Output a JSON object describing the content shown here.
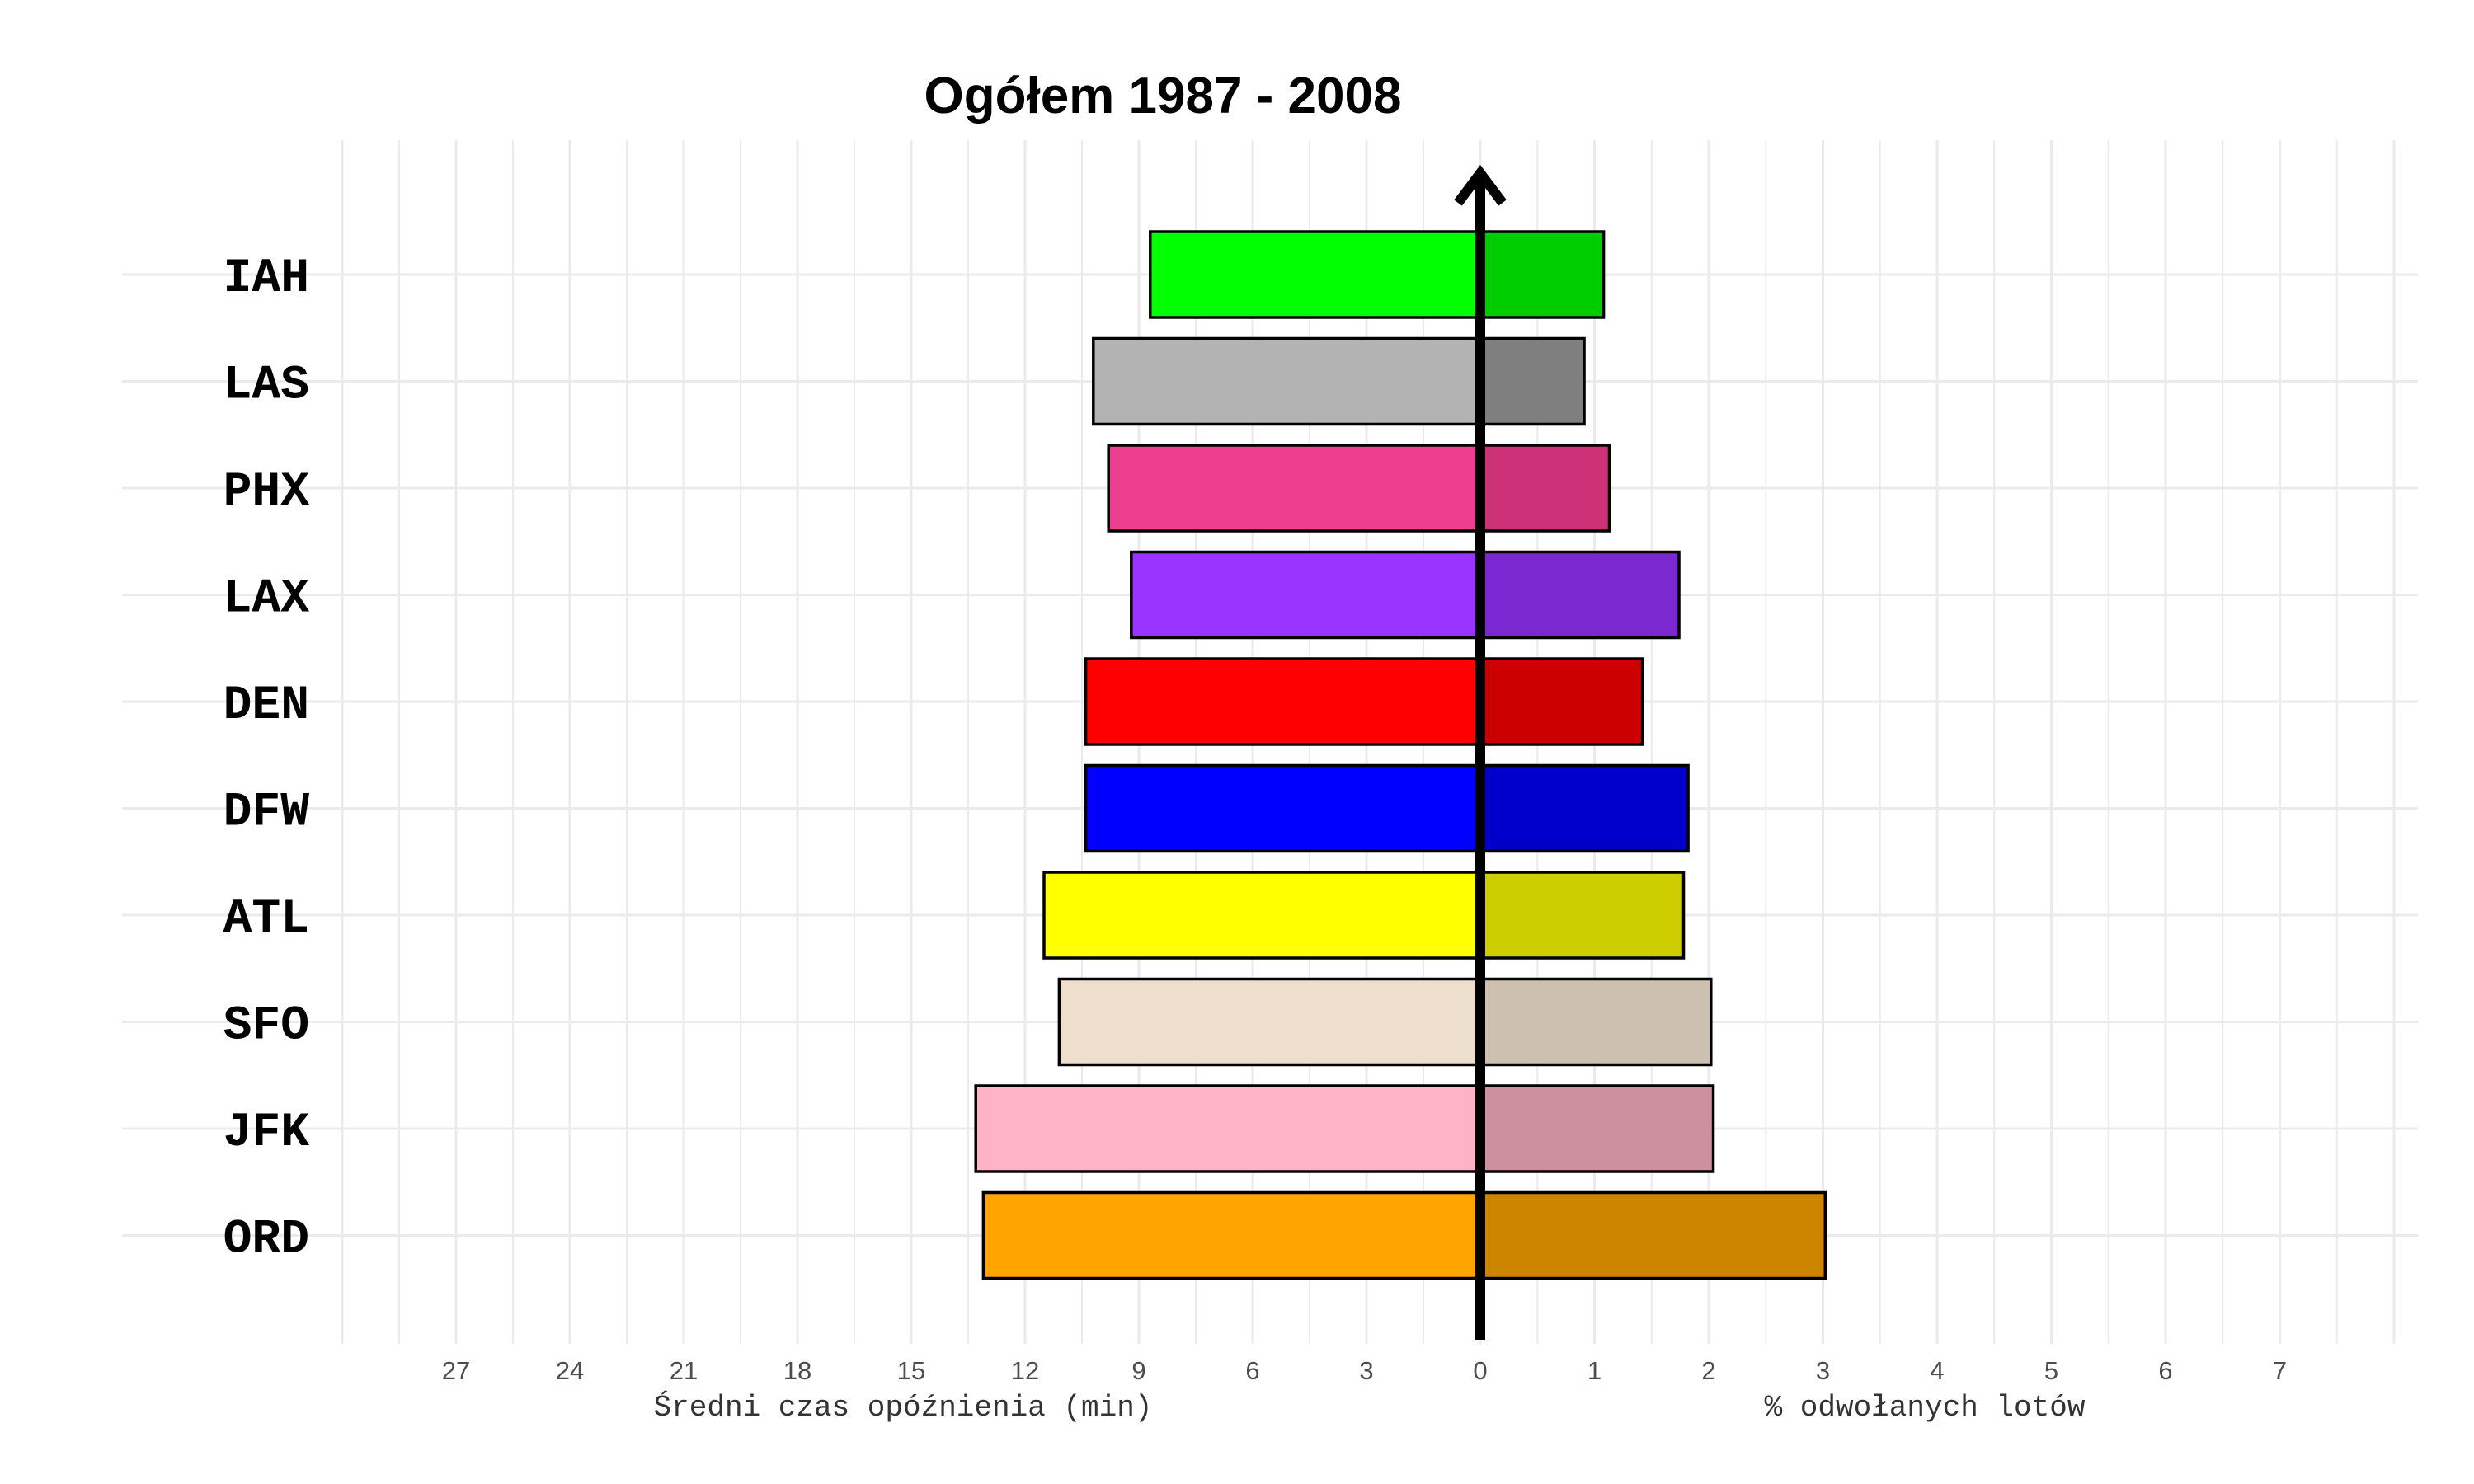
{
  "chart_data": {
    "type": "bar",
    "title": "Ogółem 1987 - 2008",
    "categories": [
      "IAH",
      "LAS",
      "PHX",
      "LAX",
      "DEN",
      "DFW",
      "ATL",
      "SFO",
      "JFK",
      "ORD"
    ],
    "series": [
      {
        "values": [
          8.7,
          10.2,
          9.8,
          9.2,
          10.4,
          10.4,
          11.5,
          11.1,
          13.3,
          13.1
        ],
        "colors": [
          "#00ff00",
          "#b3b3b3",
          "#ee3e8f",
          "#9933ff",
          "#ff0000",
          "#0000ff",
          "#ffff00",
          "#eedfcc",
          "#ffb3c6",
          "#ffa500"
        ]
      },
      {
        "values": [
          1.08,
          0.91,
          1.13,
          1.74,
          1.42,
          1.82,
          1.78,
          2.02,
          2.04,
          3.02
        ],
        "colors": [
          "#00cd00",
          "#7f7f7f",
          "#cd3278",
          "#7b28d1",
          "#cd0000",
          "#0000cd",
          "#cdcd00",
          "#cdc0b0",
          "#cd919e",
          "#cd8500"
        ]
      }
    ],
    "left_axis": {
      "label": "Średni czas opóźnienia (min)",
      "ticks": [
        "27",
        "24",
        "21",
        "18",
        "15",
        "12",
        "9",
        "6",
        "3",
        "0"
      ],
      "tick_values": [
        27,
        24,
        21,
        18,
        15,
        12,
        9,
        6,
        3,
        0
      ],
      "range": [
        0,
        30
      ]
    },
    "right_axis": {
      "label": "% odwołanych lotów",
      "ticks": [
        "1",
        "2",
        "3",
        "4",
        "5",
        "6",
        "7"
      ],
      "tick_values": [
        1,
        2,
        3,
        4,
        5,
        6,
        7
      ],
      "range": [
        0,
        8
      ]
    },
    "grid": true,
    "center_arrow": true
  }
}
